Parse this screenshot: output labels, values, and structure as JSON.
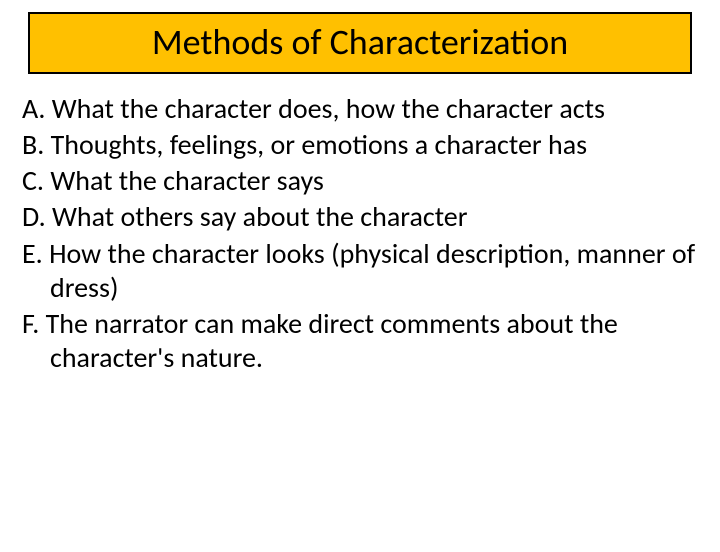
{
  "title": "Methods of Characterization",
  "title_background": "#ffc000",
  "title_border": "#000000",
  "title_color": "#000000",
  "title_fontsize": 36,
  "body_fontsize": 28,
  "body_color": "#000000",
  "background_color": "#ffffff",
  "items": [
    "A. What the character does, how the character acts",
    "B. Thoughts, feelings, or emotions a character has",
    "C. What the character says",
    "D. What others say about the character",
    "E. How the character looks (physical description, manner of dress)",
    "F. The narrator can make direct comments about the character's nature."
  ]
}
